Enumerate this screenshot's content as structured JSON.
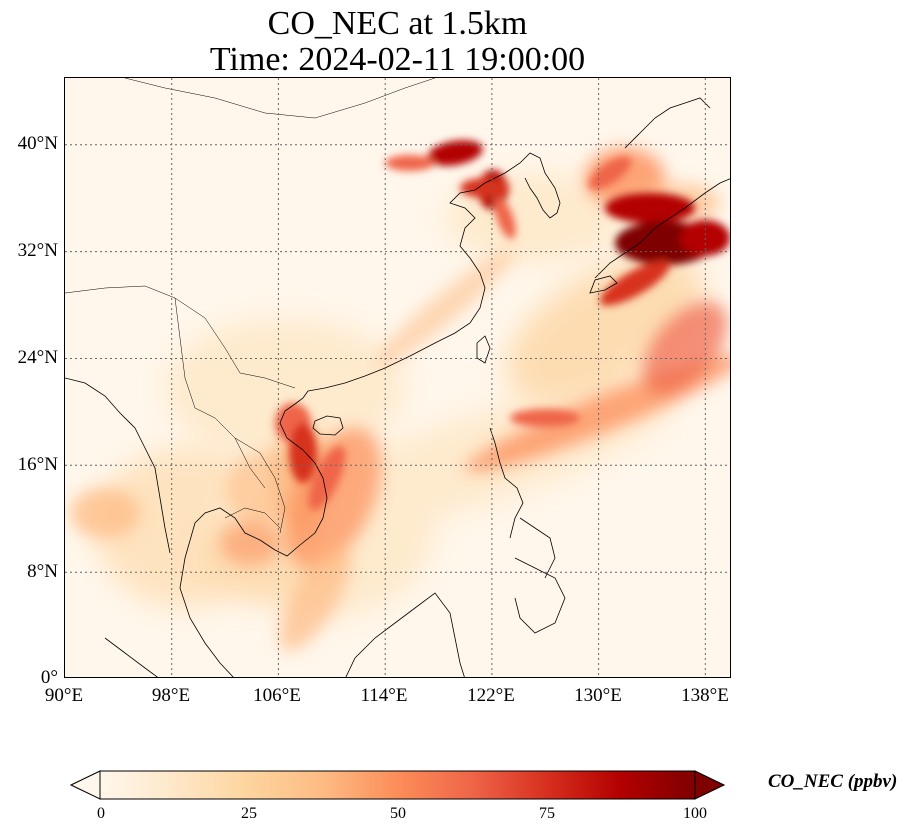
{
  "title": {
    "line1": "CO_NEC at 1.5km",
    "line2": "Time: 2024-02-11 19:00:00"
  },
  "map": {
    "lon_range": [
      90,
      140
    ],
    "lat_range": [
      0,
      45
    ],
    "lat_ticks": [
      "40°N",
      "32°N",
      "24°N",
      "16°N",
      "8°N",
      "0°"
    ],
    "lon_ticks": [
      "90°E",
      "98°E",
      "106°E",
      "114°E",
      "122°E",
      "130°E",
      "138°E"
    ],
    "gridlines": "dotted",
    "field": "CO_NEC",
    "colormap": "OrRd"
  },
  "colorbar": {
    "label": "CO_NEC (ppbv)",
    "ticks": [
      "0",
      "25",
      "50",
      "75",
      "100"
    ],
    "range": [
      0,
      100
    ],
    "extend": "both",
    "colors": [
      "#fff7ec",
      "#fee8c8",
      "#fdd49e",
      "#fdbb84",
      "#fc8d59",
      "#ef6548",
      "#d7301f",
      "#b30000",
      "#7f0000"
    ]
  }
}
